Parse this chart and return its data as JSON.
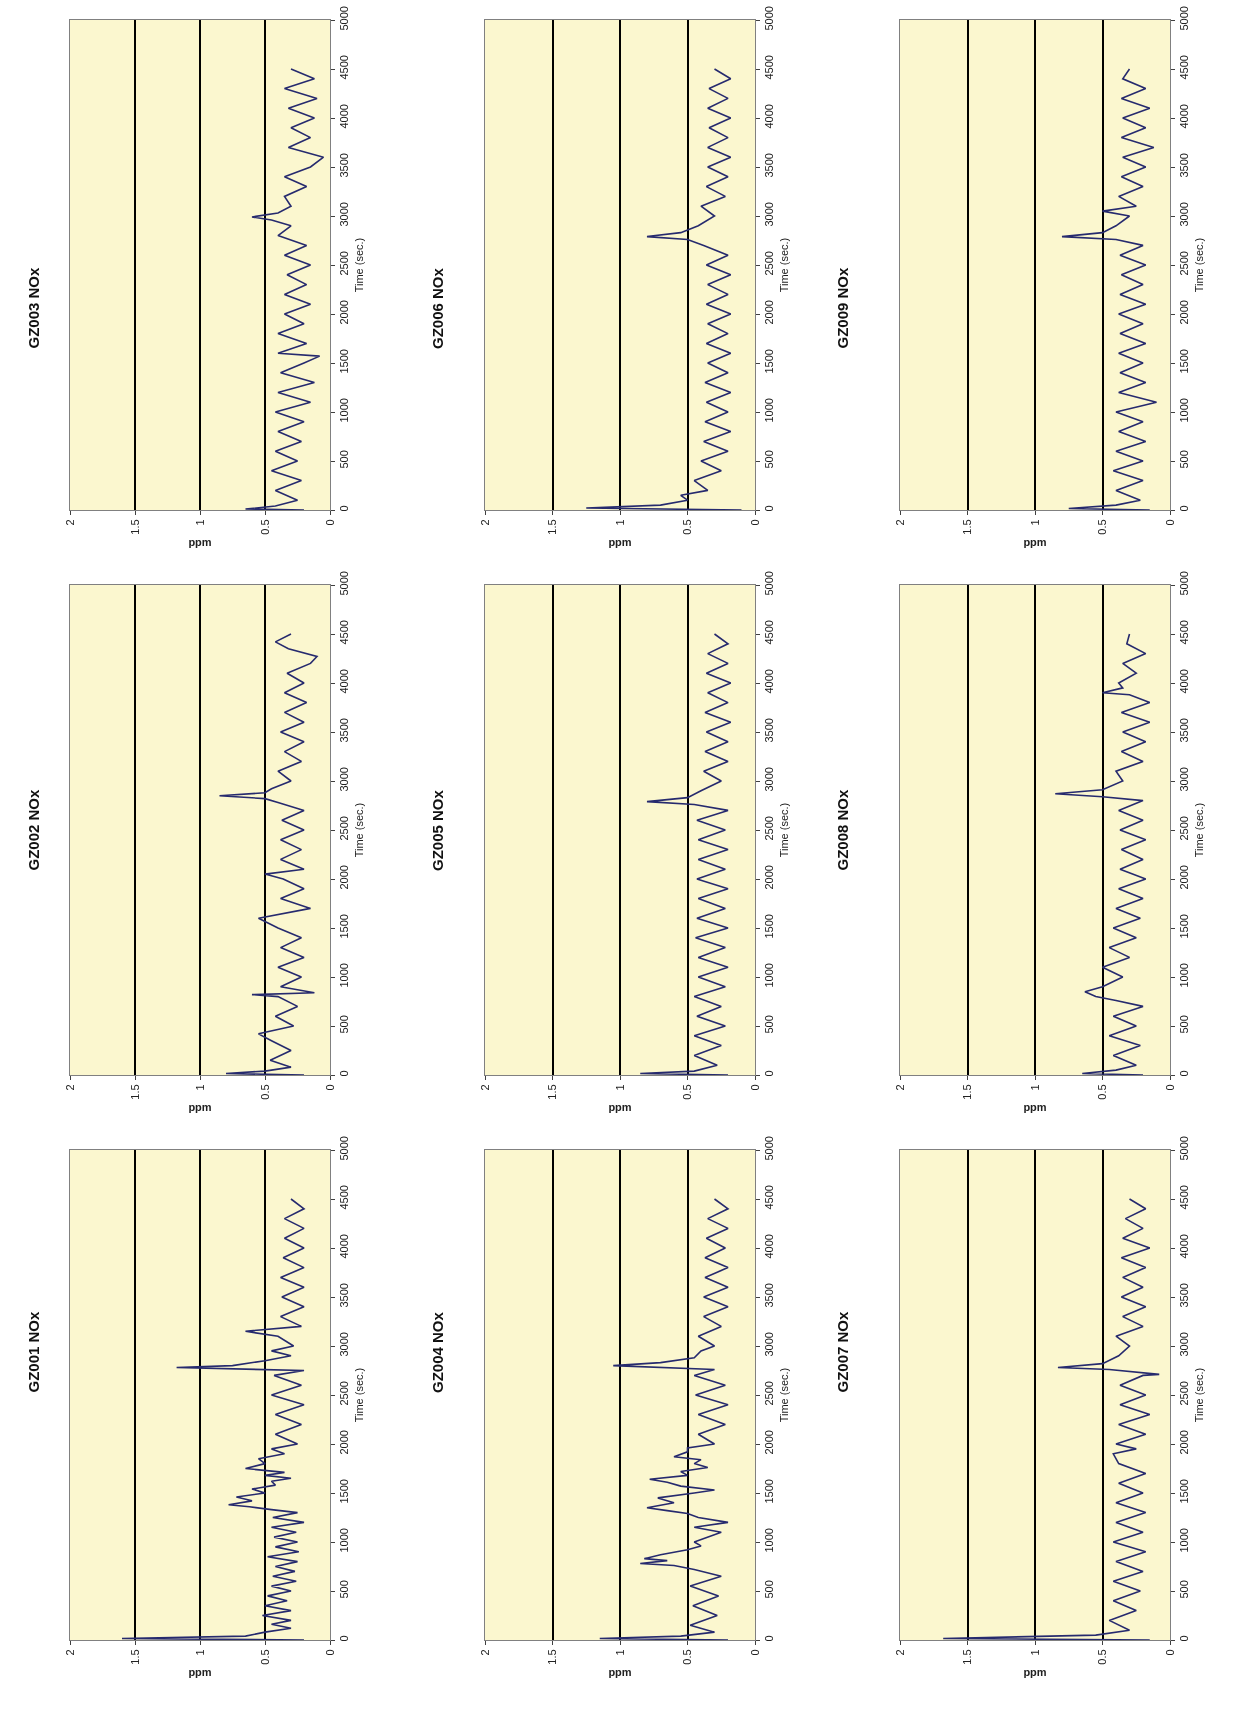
{
  "chart_data": [
    {
      "type": "line",
      "title": "GZ001 NOx",
      "xlabel": "ppm",
      "ylabel": "Time (sec.)",
      "orientation": "horizontal",
      "xlim": [
        2,
        0
      ],
      "xticks": [
        0,
        0.5,
        1,
        1.5,
        2
      ],
      "ylim": [
        0,
        5000
      ],
      "yticks": [
        0,
        500,
        1000,
        1500,
        2000,
        2500,
        3000,
        3500,
        4000,
        4500,
        5000
      ],
      "grid": "x",
      "x": [
        0,
        15,
        40,
        80,
        120,
        160,
        200,
        250,
        300,
        350,
        400,
        450,
        500,
        550,
        600,
        650,
        700,
        750,
        800,
        850,
        900,
        950,
        1000,
        1050,
        1100,
        1150,
        1200,
        1250,
        1300,
        1330,
        1360,
        1380,
        1420,
        1460,
        1500,
        1540,
        1580,
        1620,
        1650,
        1680,
        1710,
        1750,
        1800,
        1850,
        1900,
        1950,
        2000,
        2100,
        2200,
        2300,
        2400,
        2500,
        2600,
        2700,
        2750,
        2780,
        2800,
        2850,
        2900,
        2950,
        3000,
        3100,
        3150,
        3200,
        3300,
        3400,
        3500,
        3600,
        3700,
        3800,
        3900,
        4000,
        4100,
        4200,
        4300,
        4400,
        4500
      ],
      "series": [
        {
          "color": "#262a6e",
          "values": [
            0.2,
            1.6,
            0.65,
            0.5,
            0.3,
            0.45,
            0.3,
            0.52,
            0.3,
            0.5,
            0.33,
            0.48,
            0.3,
            0.45,
            0.26,
            0.44,
            0.27,
            0.42,
            0.25,
            0.48,
            0.24,
            0.42,
            0.25,
            0.43,
            0.26,
            0.45,
            0.2,
            0.44,
            0.25,
            0.45,
            0.62,
            0.78,
            0.6,
            0.72,
            0.5,
            0.6,
            0.42,
            0.45,
            0.3,
            0.5,
            0.35,
            0.65,
            0.5,
            0.55,
            0.35,
            0.45,
            0.25,
            0.42,
            0.22,
            0.42,
            0.2,
            0.45,
            0.22,
            0.43,
            0.2,
            1.18,
            0.75,
            0.5,
            0.3,
            0.45,
            0.28,
            0.4,
            0.65,
            0.22,
            0.38,
            0.2,
            0.37,
            0.2,
            0.38,
            0.2,
            0.36,
            0.2,
            0.35,
            0.2,
            0.35,
            0.2,
            0.3
          ]
        }
      ]
    },
    {
      "type": "line",
      "title": "GZ002 NOx",
      "xlabel": "ppm",
      "ylabel": "Time (sec.)",
      "orientation": "horizontal",
      "xlim": [
        2,
        0
      ],
      "xticks": [
        0,
        0.5,
        1,
        1.5,
        2
      ],
      "ylim": [
        0,
        5000
      ],
      "yticks": [
        0,
        500,
        1000,
        1500,
        2000,
        2500,
        3000,
        3500,
        4000,
        4500,
        5000
      ],
      "grid": "x",
      "x": [
        0,
        15,
        40,
        80,
        150,
        250,
        350,
        420,
        500,
        600,
        700,
        800,
        820,
        840,
        900,
        1000,
        1100,
        1200,
        1300,
        1400,
        1500,
        1600,
        1700,
        1800,
        1900,
        2000,
        2050,
        2100,
        2200,
        2300,
        2400,
        2500,
        2600,
        2700,
        2780,
        2820,
        2850,
        2880,
        2920,
        3000,
        3100,
        3200,
        3300,
        3400,
        3500,
        3600,
        3700,
        3800,
        3900,
        4000,
        4100,
        4200,
        4270,
        4350,
        4420,
        4500
      ],
      "series": [
        {
          "color": "#262a6e",
          "values": [
            0.2,
            0.8,
            0.5,
            0.3,
            0.46,
            0.3,
            0.45,
            0.55,
            0.28,
            0.42,
            0.25,
            0.4,
            0.6,
            0.12,
            0.38,
            0.22,
            0.4,
            0.2,
            0.38,
            0.22,
            0.4,
            0.55,
            0.15,
            0.38,
            0.2,
            0.36,
            0.5,
            0.2,
            0.38,
            0.22,
            0.38,
            0.2,
            0.37,
            0.2,
            0.4,
            0.5,
            0.85,
            0.5,
            0.45,
            0.3,
            0.4,
            0.22,
            0.35,
            0.2,
            0.38,
            0.2,
            0.35,
            0.18,
            0.35,
            0.2,
            0.33,
            0.15,
            0.1,
            0.32,
            0.42,
            0.3
          ]
        }
      ]
    },
    {
      "type": "line",
      "title": "GZ003 NOx",
      "xlabel": "ppm",
      "ylabel": "Time (sec.)",
      "orientation": "horizontal",
      "xlim": [
        2,
        0
      ],
      "xticks": [
        0,
        0.5,
        1,
        1.5,
        2
      ],
      "ylim": [
        0,
        5000
      ],
      "yticks": [
        0,
        500,
        1000,
        1500,
        2000,
        2500,
        3000,
        3500,
        4000,
        4500,
        5000
      ],
      "grid": "x",
      "x": [
        0,
        10,
        40,
        100,
        200,
        300,
        400,
        500,
        600,
        700,
        800,
        900,
        1000,
        1100,
        1200,
        1300,
        1400,
        1500,
        1570,
        1600,
        1700,
        1800,
        1900,
        2000,
        2100,
        2200,
        2300,
        2400,
        2500,
        2600,
        2700,
        2800,
        2900,
        2960,
        2990,
        3030,
        3100,
        3200,
        3300,
        3400,
        3500,
        3600,
        3700,
        3800,
        3900,
        4000,
        4100,
        4200,
        4300,
        4400,
        4500
      ],
      "series": [
        {
          "color": "#262a6e",
          "values": [
            0.2,
            0.65,
            0.42,
            0.25,
            0.42,
            0.22,
            0.45,
            0.25,
            0.42,
            0.22,
            0.4,
            0.2,
            0.42,
            0.15,
            0.4,
            0.12,
            0.38,
            0.2,
            0.08,
            0.4,
            0.18,
            0.4,
            0.2,
            0.35,
            0.15,
            0.35,
            0.18,
            0.33,
            0.15,
            0.35,
            0.18,
            0.4,
            0.3,
            0.45,
            0.6,
            0.4,
            0.3,
            0.35,
            0.18,
            0.35,
            0.15,
            0.05,
            0.32,
            0.15,
            0.3,
            0.12,
            0.32,
            0.1,
            0.35,
            0.12,
            0.3
          ]
        }
      ]
    },
    {
      "type": "line",
      "title": "GZ004 NOx",
      "xlabel": "ppm",
      "ylabel": "Time (sec.)",
      "orientation": "horizontal",
      "xlim": [
        2,
        0
      ],
      "xticks": [
        0,
        0.5,
        1,
        1.5,
        2
      ],
      "ylim": [
        0,
        5000
      ],
      "yticks": [
        0,
        500,
        1000,
        1500,
        2000,
        2500,
        3000,
        3500,
        4000,
        4500,
        5000
      ],
      "grid": "x",
      "x": [
        0,
        15,
        40,
        80,
        150,
        250,
        350,
        450,
        550,
        650,
        720,
        760,
        780,
        810,
        830,
        870,
        920,
        960,
        1000,
        1100,
        1150,
        1200,
        1250,
        1290,
        1320,
        1350,
        1400,
        1450,
        1500,
        1530,
        1570,
        1610,
        1640,
        1680,
        1720,
        1760,
        1800,
        1840,
        1870,
        1920,
        1960,
        2000,
        2100,
        2200,
        2300,
        2400,
        2500,
        2600,
        2700,
        2760,
        2800,
        2830,
        2880,
        2950,
        3000,
        3100,
        3200,
        3300,
        3400,
        3500,
        3600,
        3700,
        3800,
        3900,
        4000,
        4100,
        4200,
        4300,
        4400,
        4500
      ],
      "series": [
        {
          "color": "#262a6e",
          "values": [
            0.2,
            1.15,
            0.55,
            0.3,
            0.48,
            0.28,
            0.46,
            0.27,
            0.48,
            0.25,
            0.45,
            0.6,
            0.85,
            0.65,
            0.82,
            0.7,
            0.5,
            0.4,
            0.45,
            0.25,
            0.45,
            0.2,
            0.42,
            0.5,
            0.65,
            0.8,
            0.6,
            0.72,
            0.45,
            0.3,
            0.55,
            0.65,
            0.78,
            0.5,
            0.55,
            0.35,
            0.45,
            0.4,
            0.6,
            0.5,
            0.5,
            0.3,
            0.42,
            0.22,
            0.42,
            0.2,
            0.44,
            0.22,
            0.45,
            0.3,
            1.05,
            0.7,
            0.45,
            0.4,
            0.3,
            0.42,
            0.25,
            0.38,
            0.2,
            0.38,
            0.2,
            0.37,
            0.2,
            0.37,
            0.22,
            0.36,
            0.2,
            0.35,
            0.2,
            0.3
          ]
        }
      ]
    },
    {
      "type": "line",
      "title": "GZ005 NOx",
      "xlabel": "ppm",
      "ylabel": "Time (sec.)",
      "orientation": "horizontal",
      "xlim": [
        2,
        0
      ],
      "xticks": [
        0,
        0.5,
        1,
        1.5,
        2
      ],
      "ylim": [
        0,
        5000
      ],
      "yticks": [
        0,
        500,
        1000,
        1500,
        2000,
        2500,
        3000,
        3500,
        4000,
        4500,
        5000
      ],
      "grid": "x",
      "x": [
        0,
        15,
        40,
        100,
        200,
        300,
        400,
        500,
        600,
        700,
        800,
        900,
        1000,
        1100,
        1200,
        1300,
        1400,
        1500,
        1600,
        1700,
        1800,
        1900,
        2000,
        2100,
        2200,
        2300,
        2400,
        2500,
        2600,
        2700,
        2760,
        2790,
        2830,
        2900,
        3000,
        3100,
        3200,
        3300,
        3400,
        3500,
        3600,
        3700,
        3800,
        3900,
        4000,
        4100,
        4200,
        4300,
        4400,
        4500
      ],
      "series": [
        {
          "color": "#262a6e",
          "values": [
            0.2,
            0.85,
            0.45,
            0.28,
            0.45,
            0.25,
            0.45,
            0.22,
            0.43,
            0.25,
            0.45,
            0.22,
            0.42,
            0.2,
            0.42,
            0.22,
            0.44,
            0.2,
            0.43,
            0.22,
            0.42,
            0.2,
            0.43,
            0.22,
            0.42,
            0.2,
            0.42,
            0.22,
            0.43,
            0.2,
            0.45,
            0.8,
            0.5,
            0.4,
            0.25,
            0.38,
            0.2,
            0.37,
            0.2,
            0.36,
            0.18,
            0.37,
            0.2,
            0.35,
            0.18,
            0.36,
            0.2,
            0.35,
            0.2,
            0.3
          ]
        }
      ]
    },
    {
      "type": "line",
      "title": "GZ006 NOx",
      "xlabel": "ppm",
      "ylabel": "Time (sec.)",
      "orientation": "horizontal",
      "xlim": [
        2,
        0
      ],
      "xticks": [
        0,
        0.5,
        1,
        1.5,
        2
      ],
      "ylim": [
        0,
        5000
      ],
      "yticks": [
        0,
        500,
        1000,
        1500,
        2000,
        2500,
        3000,
        3500,
        4000,
        4500,
        5000
      ],
      "grid": "x",
      "x": [
        0,
        20,
        50,
        100,
        150,
        200,
        300,
        400,
        500,
        600,
        700,
        800,
        900,
        1000,
        1100,
        1200,
        1300,
        1400,
        1500,
        1600,
        1700,
        1800,
        1900,
        2000,
        2100,
        2200,
        2300,
        2400,
        2500,
        2600,
        2700,
        2760,
        2790,
        2830,
        2900,
        3000,
        3100,
        3200,
        3300,
        3400,
        3500,
        3600,
        3700,
        3800,
        3900,
        4000,
        4100,
        4200,
        4300,
        4400,
        4500
      ],
      "series": [
        {
          "color": "#262a6e",
          "values": [
            0.1,
            1.25,
            0.7,
            0.5,
            0.55,
            0.35,
            0.45,
            0.25,
            0.4,
            0.2,
            0.38,
            0.18,
            0.37,
            0.2,
            0.36,
            0.18,
            0.37,
            0.2,
            0.35,
            0.18,
            0.36,
            0.2,
            0.35,
            0.18,
            0.36,
            0.2,
            0.35,
            0.18,
            0.36,
            0.2,
            0.38,
            0.5,
            0.8,
            0.55,
            0.42,
            0.3,
            0.4,
            0.22,
            0.36,
            0.2,
            0.35,
            0.18,
            0.35,
            0.2,
            0.34,
            0.18,
            0.35,
            0.2,
            0.34,
            0.18,
            0.3
          ]
        }
      ]
    },
    {
      "type": "line",
      "title": "GZ007 NOx",
      "xlabel": "ppm",
      "ylabel": "Time (sec.)",
      "orientation": "horizontal",
      "xlim": [
        2,
        0
      ],
      "xticks": [
        0,
        0.5,
        1,
        1.5,
        2
      ],
      "ylim": [
        0,
        5000
      ],
      "yticks": [
        0,
        500,
        1000,
        1500,
        2000,
        2500,
        3000,
        3500,
        4000,
        4500,
        5000
      ],
      "grid": "x",
      "x": [
        0,
        15,
        50,
        100,
        200,
        300,
        400,
        500,
        600,
        700,
        800,
        900,
        1000,
        1100,
        1200,
        1300,
        1400,
        1500,
        1600,
        1700,
        1800,
        1900,
        1950,
        2000,
        2100,
        2200,
        2300,
        2400,
        2500,
        2600,
        2700,
        2710,
        2760,
        2780,
        2820,
        2900,
        3000,
        3100,
        3200,
        3300,
        3400,
        3500,
        3600,
        3700,
        3800,
        3900,
        4000,
        4100,
        4200,
        4300,
        4400,
        4500
      ],
      "series": [
        {
          "color": "#262a6e",
          "values": [
            0.15,
            1.68,
            0.55,
            0.3,
            0.45,
            0.25,
            0.42,
            0.22,
            0.42,
            0.2,
            0.4,
            0.18,
            0.42,
            0.2,
            0.4,
            0.18,
            0.4,
            0.2,
            0.38,
            0.18,
            0.38,
            0.42,
            0.25,
            0.4,
            0.18,
            0.38,
            0.15,
            0.37,
            0.18,
            0.37,
            0.2,
            0.08,
            0.45,
            0.83,
            0.5,
            0.38,
            0.3,
            0.4,
            0.2,
            0.35,
            0.18,
            0.36,
            0.2,
            0.35,
            0.18,
            0.36,
            0.15,
            0.35,
            0.2,
            0.33,
            0.18,
            0.3
          ]
        }
      ]
    },
    {
      "type": "line",
      "title": "GZ008 NOx",
      "xlabel": "ppm",
      "ylabel": "Time (sec.)",
      "orientation": "horizontal",
      "xlim": [
        2,
        0
      ],
      "xticks": [
        0,
        0.5,
        1,
        1.5,
        2
      ],
      "ylim": [
        0,
        5000
      ],
      "yticks": [
        0,
        500,
        1000,
        1500,
        2000,
        2500,
        3000,
        3500,
        4000,
        4500,
        5000
      ],
      "grid": "x",
      "x": [
        0,
        15,
        50,
        100,
        200,
        300,
        400,
        500,
        600,
        700,
        760,
        800,
        850,
        900,
        1000,
        1100,
        1200,
        1300,
        1400,
        1500,
        1600,
        1700,
        1800,
        1900,
        2000,
        2100,
        2200,
        2300,
        2400,
        2500,
        2600,
        2700,
        2800,
        2840,
        2870,
        2910,
        3000,
        3100,
        3200,
        3300,
        3400,
        3500,
        3600,
        3700,
        3800,
        3880,
        3900,
        3950,
        4000,
        4100,
        4200,
        4300,
        4400,
        4500
      ],
      "series": [
        {
          "color": "#262a6e",
          "values": [
            0.2,
            0.65,
            0.4,
            0.25,
            0.42,
            0.22,
            0.45,
            0.25,
            0.42,
            0.2,
            0.4,
            0.55,
            0.63,
            0.5,
            0.35,
            0.5,
            0.3,
            0.45,
            0.25,
            0.42,
            0.22,
            0.4,
            0.2,
            0.38,
            0.18,
            0.37,
            0.2,
            0.36,
            0.18,
            0.37,
            0.2,
            0.38,
            0.2,
            0.5,
            0.85,
            0.5,
            0.35,
            0.4,
            0.2,
            0.36,
            0.18,
            0.35,
            0.15,
            0.36,
            0.15,
            0.3,
            0.5,
            0.35,
            0.38,
            0.25,
            0.35,
            0.18,
            0.32,
            0.3
          ]
        }
      ]
    },
    {
      "type": "line",
      "title": "GZ009 NOx",
      "xlabel": "ppm",
      "ylabel": "Time (sec.)",
      "orientation": "horizontal",
      "xlim": [
        2,
        0
      ],
      "xticks": [
        0,
        0.5,
        1,
        1.5,
        2
      ],
      "ylim": [
        0,
        5000
      ],
      "yticks": [
        0,
        500,
        1000,
        1500,
        2000,
        2500,
        3000,
        3500,
        4000,
        4500,
        5000
      ],
      "grid": "x",
      "x": [
        0,
        15,
        50,
        100,
        200,
        300,
        400,
        500,
        600,
        700,
        800,
        900,
        1000,
        1100,
        1200,
        1300,
        1400,
        1500,
        1600,
        1700,
        1800,
        1900,
        2000,
        2100,
        2200,
        2300,
        2400,
        2500,
        2600,
        2700,
        2760,
        2790,
        2830,
        2900,
        3000,
        3050,
        3100,
        3200,
        3300,
        3400,
        3500,
        3600,
        3700,
        3800,
        3900,
        4000,
        4100,
        4200,
        4300,
        4400,
        4500
      ],
      "series": [
        {
          "color": "#262a6e",
          "values": [
            0.15,
            0.75,
            0.4,
            0.22,
            0.4,
            0.2,
            0.42,
            0.2,
            0.4,
            0.18,
            0.38,
            0.2,
            0.4,
            0.1,
            0.38,
            0.18,
            0.37,
            0.2,
            0.38,
            0.18,
            0.37,
            0.2,
            0.38,
            0.18,
            0.37,
            0.2,
            0.36,
            0.18,
            0.37,
            0.2,
            0.4,
            0.8,
            0.5,
            0.4,
            0.3,
            0.5,
            0.25,
            0.38,
            0.2,
            0.36,
            0.18,
            0.35,
            0.12,
            0.36,
            0.18,
            0.35,
            0.15,
            0.36,
            0.18,
            0.35,
            0.3
          ]
        }
      ]
    }
  ]
}
